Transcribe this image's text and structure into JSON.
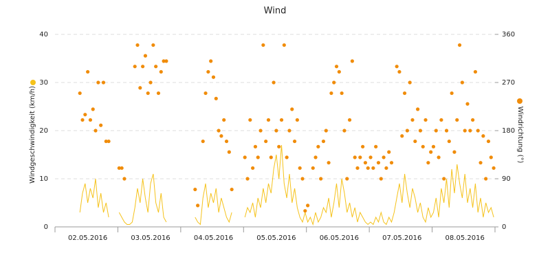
{
  "chart_data": {
    "type": "line-scatter",
    "title": "Wind",
    "categories": [
      null,
      null,
      null,
      null,
      null,
      null,
      null,
      null,
      null,
      null,
      null,
      null,
      "02.05.2016",
      null,
      null,
      null,
      null,
      null,
      null,
      null,
      null,
      null,
      null,
      null,
      null,
      null,
      null,
      null,
      null,
      null,
      null,
      null,
      null,
      null,
      null,
      null,
      "03.05.2016",
      null,
      null,
      null,
      null,
      null,
      null,
      null,
      null,
      null,
      null,
      null,
      null,
      null,
      null,
      null,
      null,
      null,
      null,
      null,
      null,
      null,
      null,
      null,
      "04.05.2016",
      null,
      null,
      null,
      null,
      null,
      null,
      null,
      null,
      null,
      null,
      null,
      null,
      null,
      null,
      null,
      null,
      null,
      null,
      null,
      null,
      null,
      null,
      null,
      "05.05.2016",
      null,
      null,
      null,
      null,
      null,
      null,
      null,
      null,
      null,
      null,
      null,
      null,
      null,
      null,
      null,
      null,
      null,
      null,
      null,
      null,
      null,
      null,
      null,
      "06.05.2016",
      null,
      null,
      null,
      null,
      null,
      null,
      null,
      null,
      null,
      null,
      null,
      null,
      null,
      null,
      null,
      null,
      null,
      null,
      null,
      null,
      null,
      null,
      null,
      "07.05.2016",
      null,
      null,
      null,
      null,
      null,
      null,
      null,
      null,
      null,
      null,
      null,
      null,
      null,
      null,
      null,
      null,
      null,
      null,
      null,
      null,
      null,
      null,
      null,
      "08.05.2016",
      null,
      null,
      null,
      null,
      null,
      null,
      null,
      null,
      null,
      null,
      null
    ],
    "series": [
      {
        "name": "Windgeschwindigkeit (km/h)",
        "color": "#f5c21b",
        "kind": "line",
        "values": [
          null,
          null,
          null,
          null,
          null,
          null,
          null,
          null,
          null,
          3,
          7,
          9,
          5,
          8,
          6,
          10,
          4,
          7,
          3,
          5,
          2,
          null,
          null,
          null,
          3,
          2,
          1,
          0.5,
          0.5,
          1,
          4,
          8,
          5,
          10,
          6,
          3,
          9,
          11,
          5,
          3,
          7,
          2,
          1,
          null,
          null,
          null,
          null,
          null,
          null,
          null,
          null,
          null,
          null,
          2,
          1,
          0.5,
          6,
          9,
          4,
          7,
          5,
          8,
          3,
          6,
          4,
          2,
          1,
          3,
          null,
          null,
          null,
          null,
          2,
          4,
          3,
          5,
          2,
          6,
          4,
          8,
          5,
          9,
          7,
          12,
          15,
          10,
          17,
          9,
          6,
          11,
          5,
          8,
          4,
          2,
          1,
          3,
          1,
          2,
          0.5,
          3,
          1,
          2,
          4,
          3,
          6,
          2,
          5,
          9,
          4,
          10,
          7,
          3,
          5,
          2,
          4,
          1,
          3,
          2,
          1,
          0.5,
          1,
          0.5,
          2,
          1,
          3,
          1,
          0.5,
          2,
          1,
          3,
          6,
          9,
          5,
          11,
          7,
          4,
          8,
          6,
          3,
          5,
          2,
          1,
          4,
          2,
          3,
          6,
          2,
          8,
          5,
          10,
          4,
          12,
          7,
          13,
          9,
          6,
          11,
          5,
          8,
          4,
          9,
          3,
          6,
          2,
          5,
          3,
          4,
          2
        ]
      },
      {
        "name": "Windrichtung (°)",
        "color": "#f08c0a",
        "kind": "scatter",
        "axis": "y2",
        "values": [
          null,
          null,
          null,
          null,
          null,
          null,
          null,
          null,
          null,
          250,
          200,
          210,
          290,
          200,
          220,
          180,
          270,
          190,
          270,
          160,
          160,
          null,
          null,
          null,
          110,
          110,
          90,
          null,
          null,
          null,
          300,
          340,
          260,
          300,
          320,
          250,
          270,
          340,
          300,
          250,
          290,
          310,
          310,
          null,
          null,
          null,
          null,
          null,
          null,
          null,
          null,
          null,
          null,
          70,
          40,
          null,
          160,
          250,
          290,
          310,
          280,
          240,
          180,
          170,
          200,
          160,
          140,
          70,
          null,
          null,
          null,
          null,
          130,
          90,
          200,
          110,
          150,
          130,
          180,
          340,
          160,
          200,
          130,
          270,
          180,
          150,
          200,
          340,
          130,
          180,
          220,
          160,
          200,
          110,
          90,
          30,
          40,
          null,
          110,
          130,
          150,
          90,
          160,
          180,
          120,
          250,
          270,
          300,
          290,
          250,
          180,
          90,
          200,
          310,
          130,
          110,
          130,
          150,
          120,
          110,
          130,
          110,
          150,
          120,
          90,
          130,
          110,
          140,
          120,
          null,
          300,
          290,
          170,
          250,
          180,
          270,
          200,
          160,
          220,
          180,
          150,
          200,
          120,
          140,
          150,
          180,
          130,
          200,
          90,
          180,
          160,
          250,
          140,
          200,
          340,
          270,
          180,
          230,
          180,
          200,
          290,
          180,
          120,
          170,
          90,
          160,
          130,
          110
        ]
      }
    ],
    "ylim": [
      0,
      40
    ],
    "yticks": [
      0,
      10,
      20,
      30,
      40
    ],
    "y2lim": [
      0,
      360
    ],
    "y2ticks": [
      0,
      90,
      180,
      270,
      360
    ],
    "grid": true
  }
}
